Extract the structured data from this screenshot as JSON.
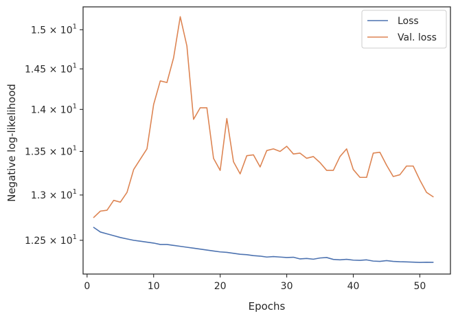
{
  "chart_data": {
    "type": "line",
    "title": "",
    "xlabel": "Epochs",
    "ylabel": "Negative log-likelihood",
    "xlim": [
      -0.6,
      54.6
    ],
    "ylim": [
      12.14,
      15.3
    ],
    "y_scale": "log",
    "grid": false,
    "legend_position": "top-right",
    "x_ticks": [
      0,
      10,
      20,
      30,
      40,
      50
    ],
    "x_tick_labels": [
      "0",
      "10",
      "20",
      "30",
      "40",
      "50"
    ],
    "y_ticks": [
      12.5,
      13.0,
      13.5,
      14.0,
      14.5,
      15.0
    ],
    "y_tick_labels": [
      {
        "mantissa": "1.25",
        "base": "10",
        "exp": "1"
      },
      {
        "mantissa": "1.3",
        "base": "10",
        "exp": "1"
      },
      {
        "mantissa": "1.35",
        "base": "10",
        "exp": "1"
      },
      {
        "mantissa": "1.4",
        "base": "10",
        "exp": "1"
      },
      {
        "mantissa": "1.45",
        "base": "10",
        "exp": "1"
      },
      {
        "mantissa": "1.5",
        "base": "10",
        "exp": "1"
      }
    ],
    "x": [
      1,
      2,
      3,
      4,
      5,
      6,
      7,
      8,
      9,
      10,
      11,
      12,
      13,
      14,
      15,
      16,
      17,
      18,
      19,
      20,
      21,
      22,
      23,
      24,
      25,
      26,
      27,
      28,
      29,
      30,
      31,
      32,
      33,
      34,
      35,
      36,
      37,
      38,
      39,
      40,
      41,
      42,
      43,
      44,
      45,
      46,
      47,
      48,
      49,
      50,
      51,
      52
    ],
    "series": [
      {
        "name": "Loss",
        "color": "#4c72b0",
        "values": [
          12.64,
          12.59,
          12.57,
          12.55,
          12.53,
          12.515,
          12.5,
          12.49,
          12.48,
          12.47,
          12.455,
          12.455,
          12.445,
          12.435,
          12.425,
          12.415,
          12.405,
          12.395,
          12.385,
          12.375,
          12.37,
          12.36,
          12.35,
          12.345,
          12.335,
          12.33,
          12.32,
          12.325,
          12.32,
          12.315,
          12.318,
          12.3,
          12.305,
          12.297,
          12.31,
          12.315,
          12.295,
          12.29,
          12.296,
          12.287,
          12.285,
          12.29,
          12.277,
          12.274,
          12.282,
          12.274,
          12.27,
          12.268,
          12.266,
          12.263,
          12.265,
          12.264
        ]
      },
      {
        "name": "Val. loss",
        "color": "#dd8452",
        "values": [
          12.75,
          12.82,
          12.83,
          12.94,
          12.92,
          13.03,
          13.29,
          13.41,
          13.53,
          14.06,
          14.35,
          14.33,
          14.64,
          15.17,
          14.79,
          13.88,
          14.02,
          14.02,
          13.42,
          13.28,
          13.89,
          13.38,
          13.24,
          13.45,
          13.46,
          13.32,
          13.51,
          13.53,
          13.5,
          13.56,
          13.47,
          13.48,
          13.42,
          13.44,
          13.37,
          13.28,
          13.28,
          13.44,
          13.53,
          13.29,
          13.2,
          13.2,
          13.48,
          13.49,
          13.34,
          13.21,
          13.23,
          13.33,
          13.33,
          13.17,
          13.03,
          12.98
        ]
      }
    ]
  }
}
